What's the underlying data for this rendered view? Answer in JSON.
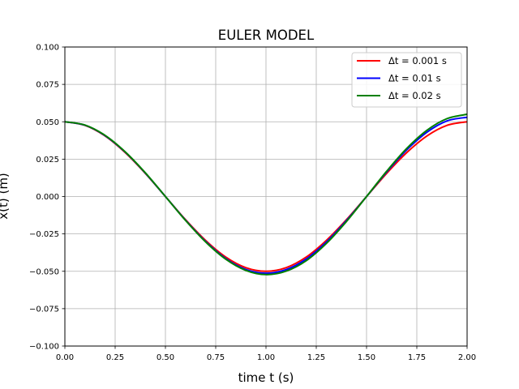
{
  "chart_data": {
    "type": "line",
    "title": "EULER MODEL",
    "xlabel": "time t (s)",
    "ylabel": "x(t) (m)",
    "xlim": [
      0.0,
      2.0
    ],
    "ylim": [
      -0.1,
      0.1
    ],
    "xticks": [
      0.0,
      0.25,
      0.5,
      0.75,
      1.0,
      1.25,
      1.5,
      1.75,
      2.0
    ],
    "xtick_labels": [
      "0.00",
      "0.25",
      "0.50",
      "0.75",
      "1.00",
      "1.25",
      "1.50",
      "1.75",
      "2.00"
    ],
    "yticks": [
      -0.1,
      -0.075,
      -0.05,
      -0.025,
      0.0,
      0.025,
      0.05,
      0.075,
      0.1
    ],
    "ytick_labels": [
      "−0.100",
      "−0.075",
      "−0.050",
      "−0.025",
      "0.000",
      "0.025",
      "0.050",
      "0.075",
      "0.100"
    ],
    "grid": true,
    "legend_position": "top-right",
    "x": [
      0.0,
      0.1,
      0.2,
      0.3,
      0.4,
      0.5,
      0.6,
      0.7,
      0.8,
      0.9,
      1.0,
      1.1,
      1.2,
      1.3,
      1.4,
      1.5,
      1.6,
      1.7,
      1.8,
      1.9,
      2.0
    ],
    "series": [
      {
        "name": "Δt = 0.001 s",
        "color": "#ff0000",
        "values": [
          0.05,
          0.0476,
          0.0405,
          0.0294,
          0.0155,
          0.0,
          -0.0155,
          -0.0294,
          -0.0405,
          -0.0476,
          -0.05,
          -0.0476,
          -0.0405,
          -0.0294,
          -0.0155,
          0.0,
          0.0155,
          0.0294,
          0.0405,
          0.0476,
          0.05
        ]
      },
      {
        "name": "Δt = 0.01 s",
        "color": "#0000ff",
        "values": [
          0.05,
          0.0477,
          0.0407,
          0.0297,
          0.0157,
          0.0,
          -0.0158,
          -0.0301,
          -0.0415,
          -0.0488,
          -0.0513,
          -0.0489,
          -0.0418,
          -0.0305,
          -0.0161,
          0.0,
          0.0164,
          0.0312,
          0.043,
          0.0506,
          0.053
        ]
      },
      {
        "name": "Δt = 0.02 s",
        "color": "#008000",
        "values": [
          0.05,
          0.0478,
          0.0409,
          0.0299,
          0.0159,
          0.0,
          -0.016,
          -0.0304,
          -0.0419,
          -0.0494,
          -0.0522,
          -0.0499,
          -0.0429,
          -0.0314,
          -0.0167,
          0.0,
          0.0169,
          0.0322,
          0.0443,
          0.0521,
          0.055
        ]
      }
    ]
  }
}
